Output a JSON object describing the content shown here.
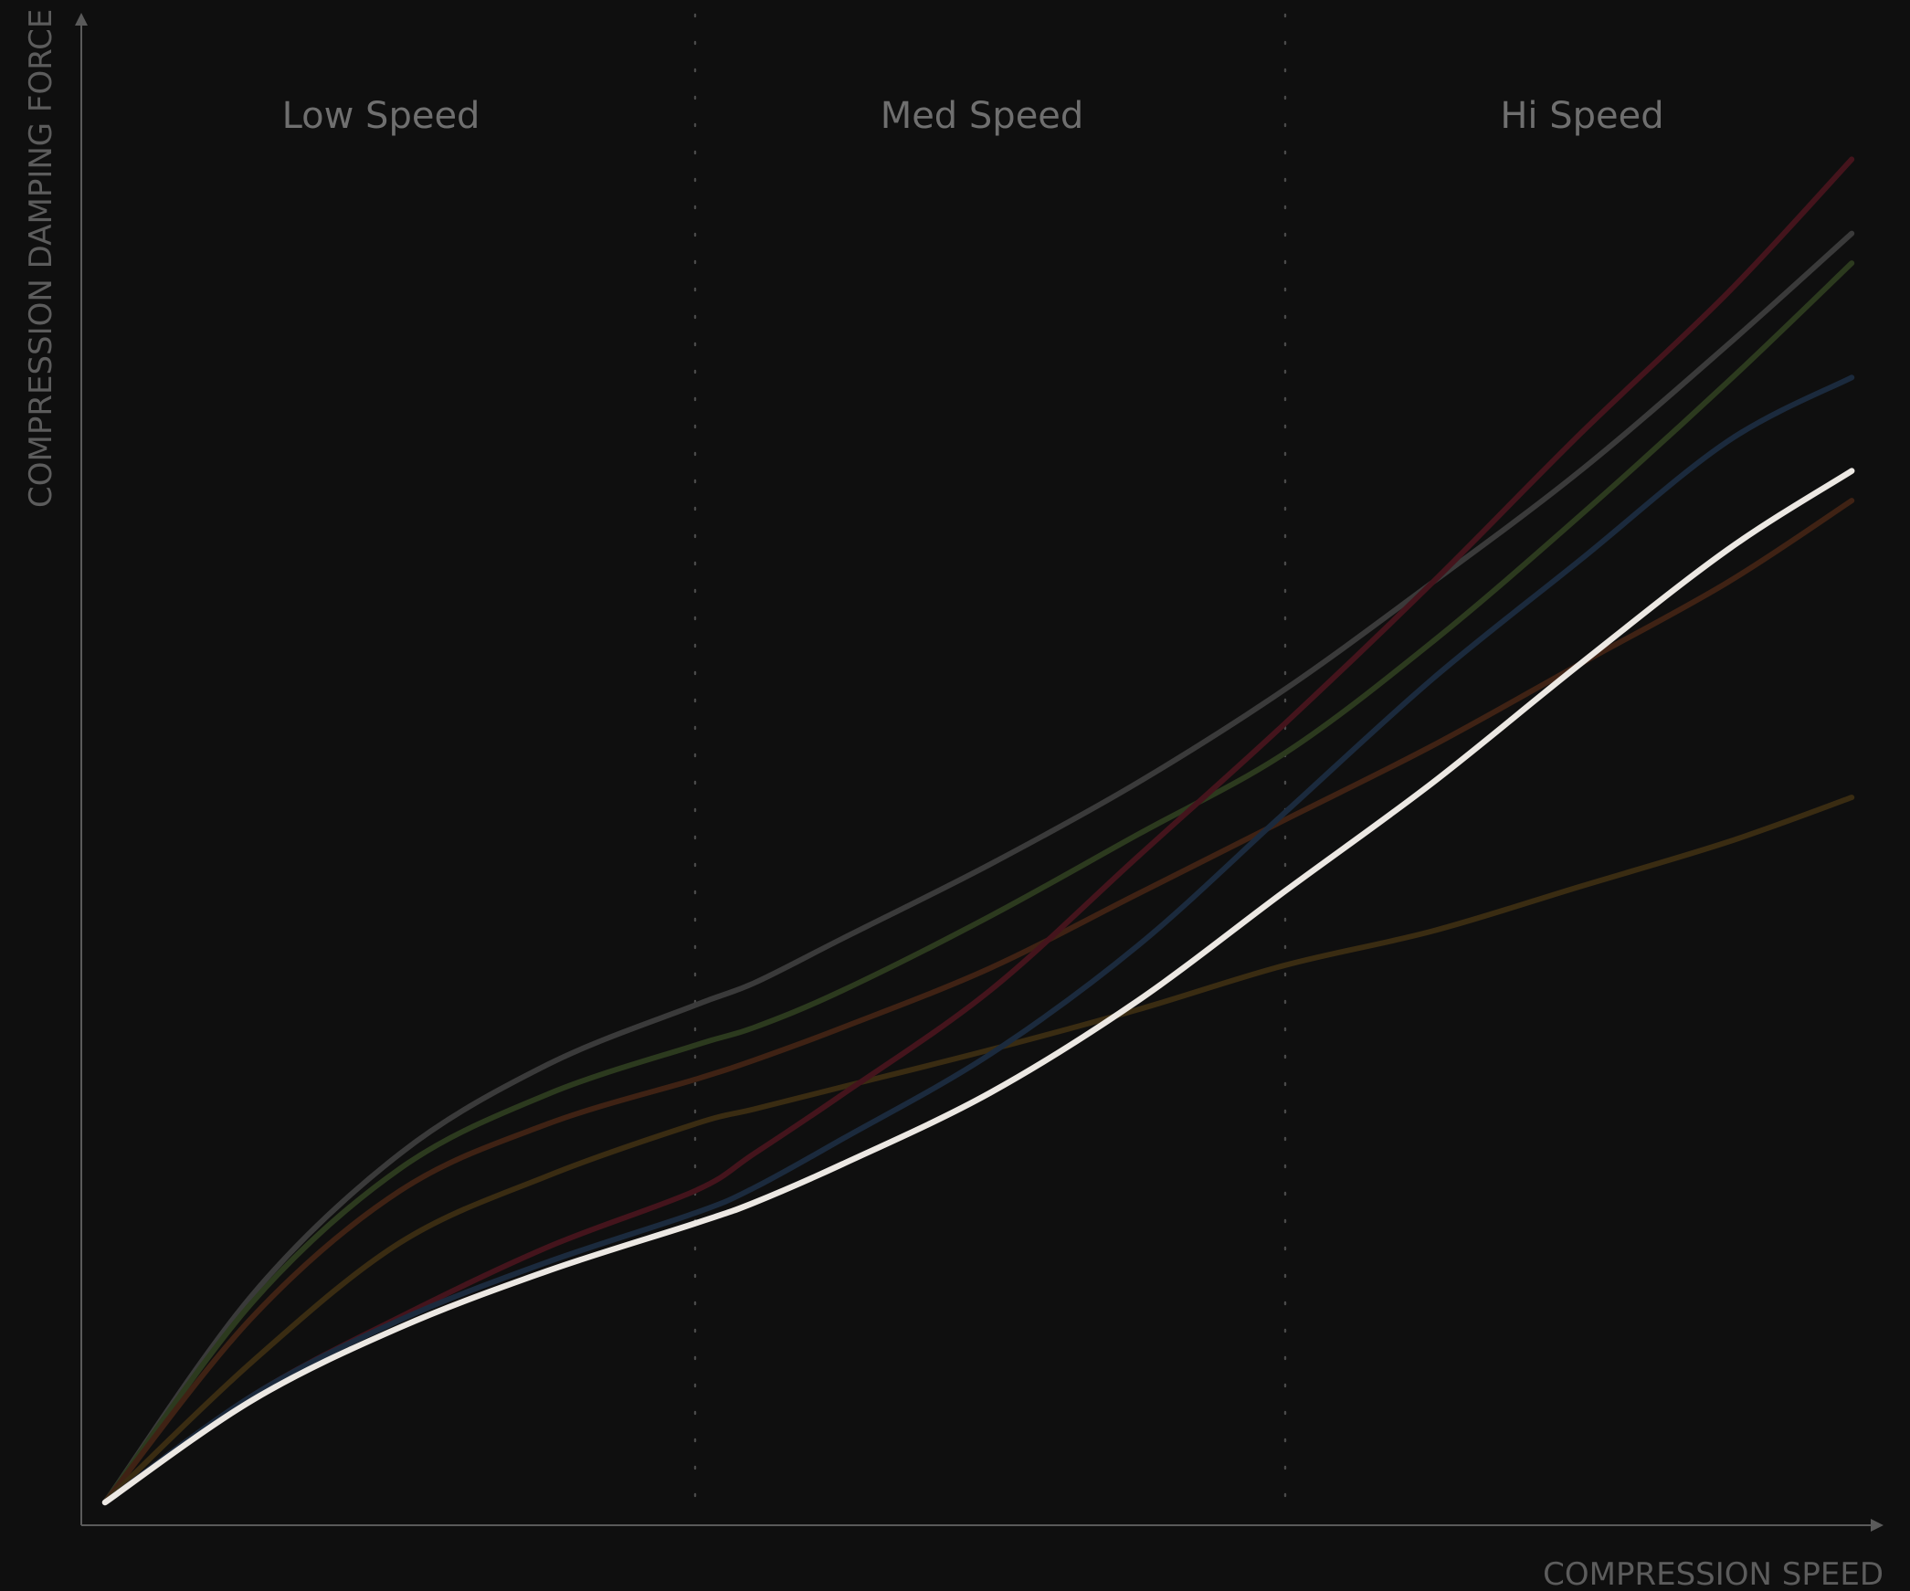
{
  "chart_data": {
    "type": "line",
    "xlabel": "COMPRESSION SPEED",
    "ylabel": "COMPRESSION DAMPING FORCE",
    "zones": [
      "Low Speed",
      "Med Speed",
      "Hi Speed"
    ],
    "zone_boundaries": [
      1,
      2
    ],
    "xlim": [
      0,
      3
    ],
    "ylim": [
      0,
      100
    ],
    "grid": false,
    "legend": "none",
    "x": [
      0,
      0.25,
      0.5,
      0.75,
      1.0,
      1.1,
      1.25,
      1.5,
      1.75,
      2.0,
      2.25,
      2.5,
      2.75,
      2.96
    ],
    "series": [
      {
        "color": "#3a3a3a",
        "emphasis": false,
        "values": [
          0,
          14,
          23.5,
          29.5,
          33.5,
          35,
          38,
          43,
          48.5,
          54.8,
          62,
          69.5,
          78,
          85.5
        ]
      },
      {
        "color": "#2c3a1e",
        "emphasis": false,
        "values": [
          0,
          13.5,
          22.5,
          27.5,
          30.8,
          32,
          34.5,
          39.5,
          45,
          50.5,
          58,
          66.5,
          75.5,
          83.5
        ]
      },
      {
        "color": "#3f2214",
        "emphasis": false,
        "values": [
          0,
          12.5,
          21,
          25.5,
          28.5,
          29.8,
          32,
          36,
          41,
          46,
          51,
          56.5,
          62,
          67.5
        ]
      },
      {
        "color": "#3a2c12",
        "emphasis": false,
        "values": [
          0,
          9.5,
          17.5,
          22,
          25.5,
          26.5,
          28,
          30.5,
          33.2,
          36.2,
          38.5,
          41.5,
          44.5,
          47.5
        ]
      },
      {
        "color": "#44141c",
        "emphasis": false,
        "values": [
          0,
          7.2,
          12.5,
          17.2,
          21,
          23.5,
          27.5,
          34.5,
          43.5,
          52.5,
          62,
          72,
          81.5,
          90.5
        ]
      },
      {
        "color": "#1b2a3d",
        "emphasis": false,
        "values": [
          0,
          7.2,
          12.3,
          16.2,
          19.5,
          21.2,
          24.5,
          30.2,
          37.5,
          46.5,
          55.5,
          63.5,
          71.5,
          75.8
        ]
      },
      {
        "color": "#ece8e3",
        "emphasis": true,
        "values": [
          0,
          6.9,
          11.8,
          15.6,
          18.8,
          20.2,
          22.8,
          27.6,
          33.8,
          41.2,
          48.5,
          56.5,
          64.2,
          69.5
        ]
      }
    ]
  }
}
